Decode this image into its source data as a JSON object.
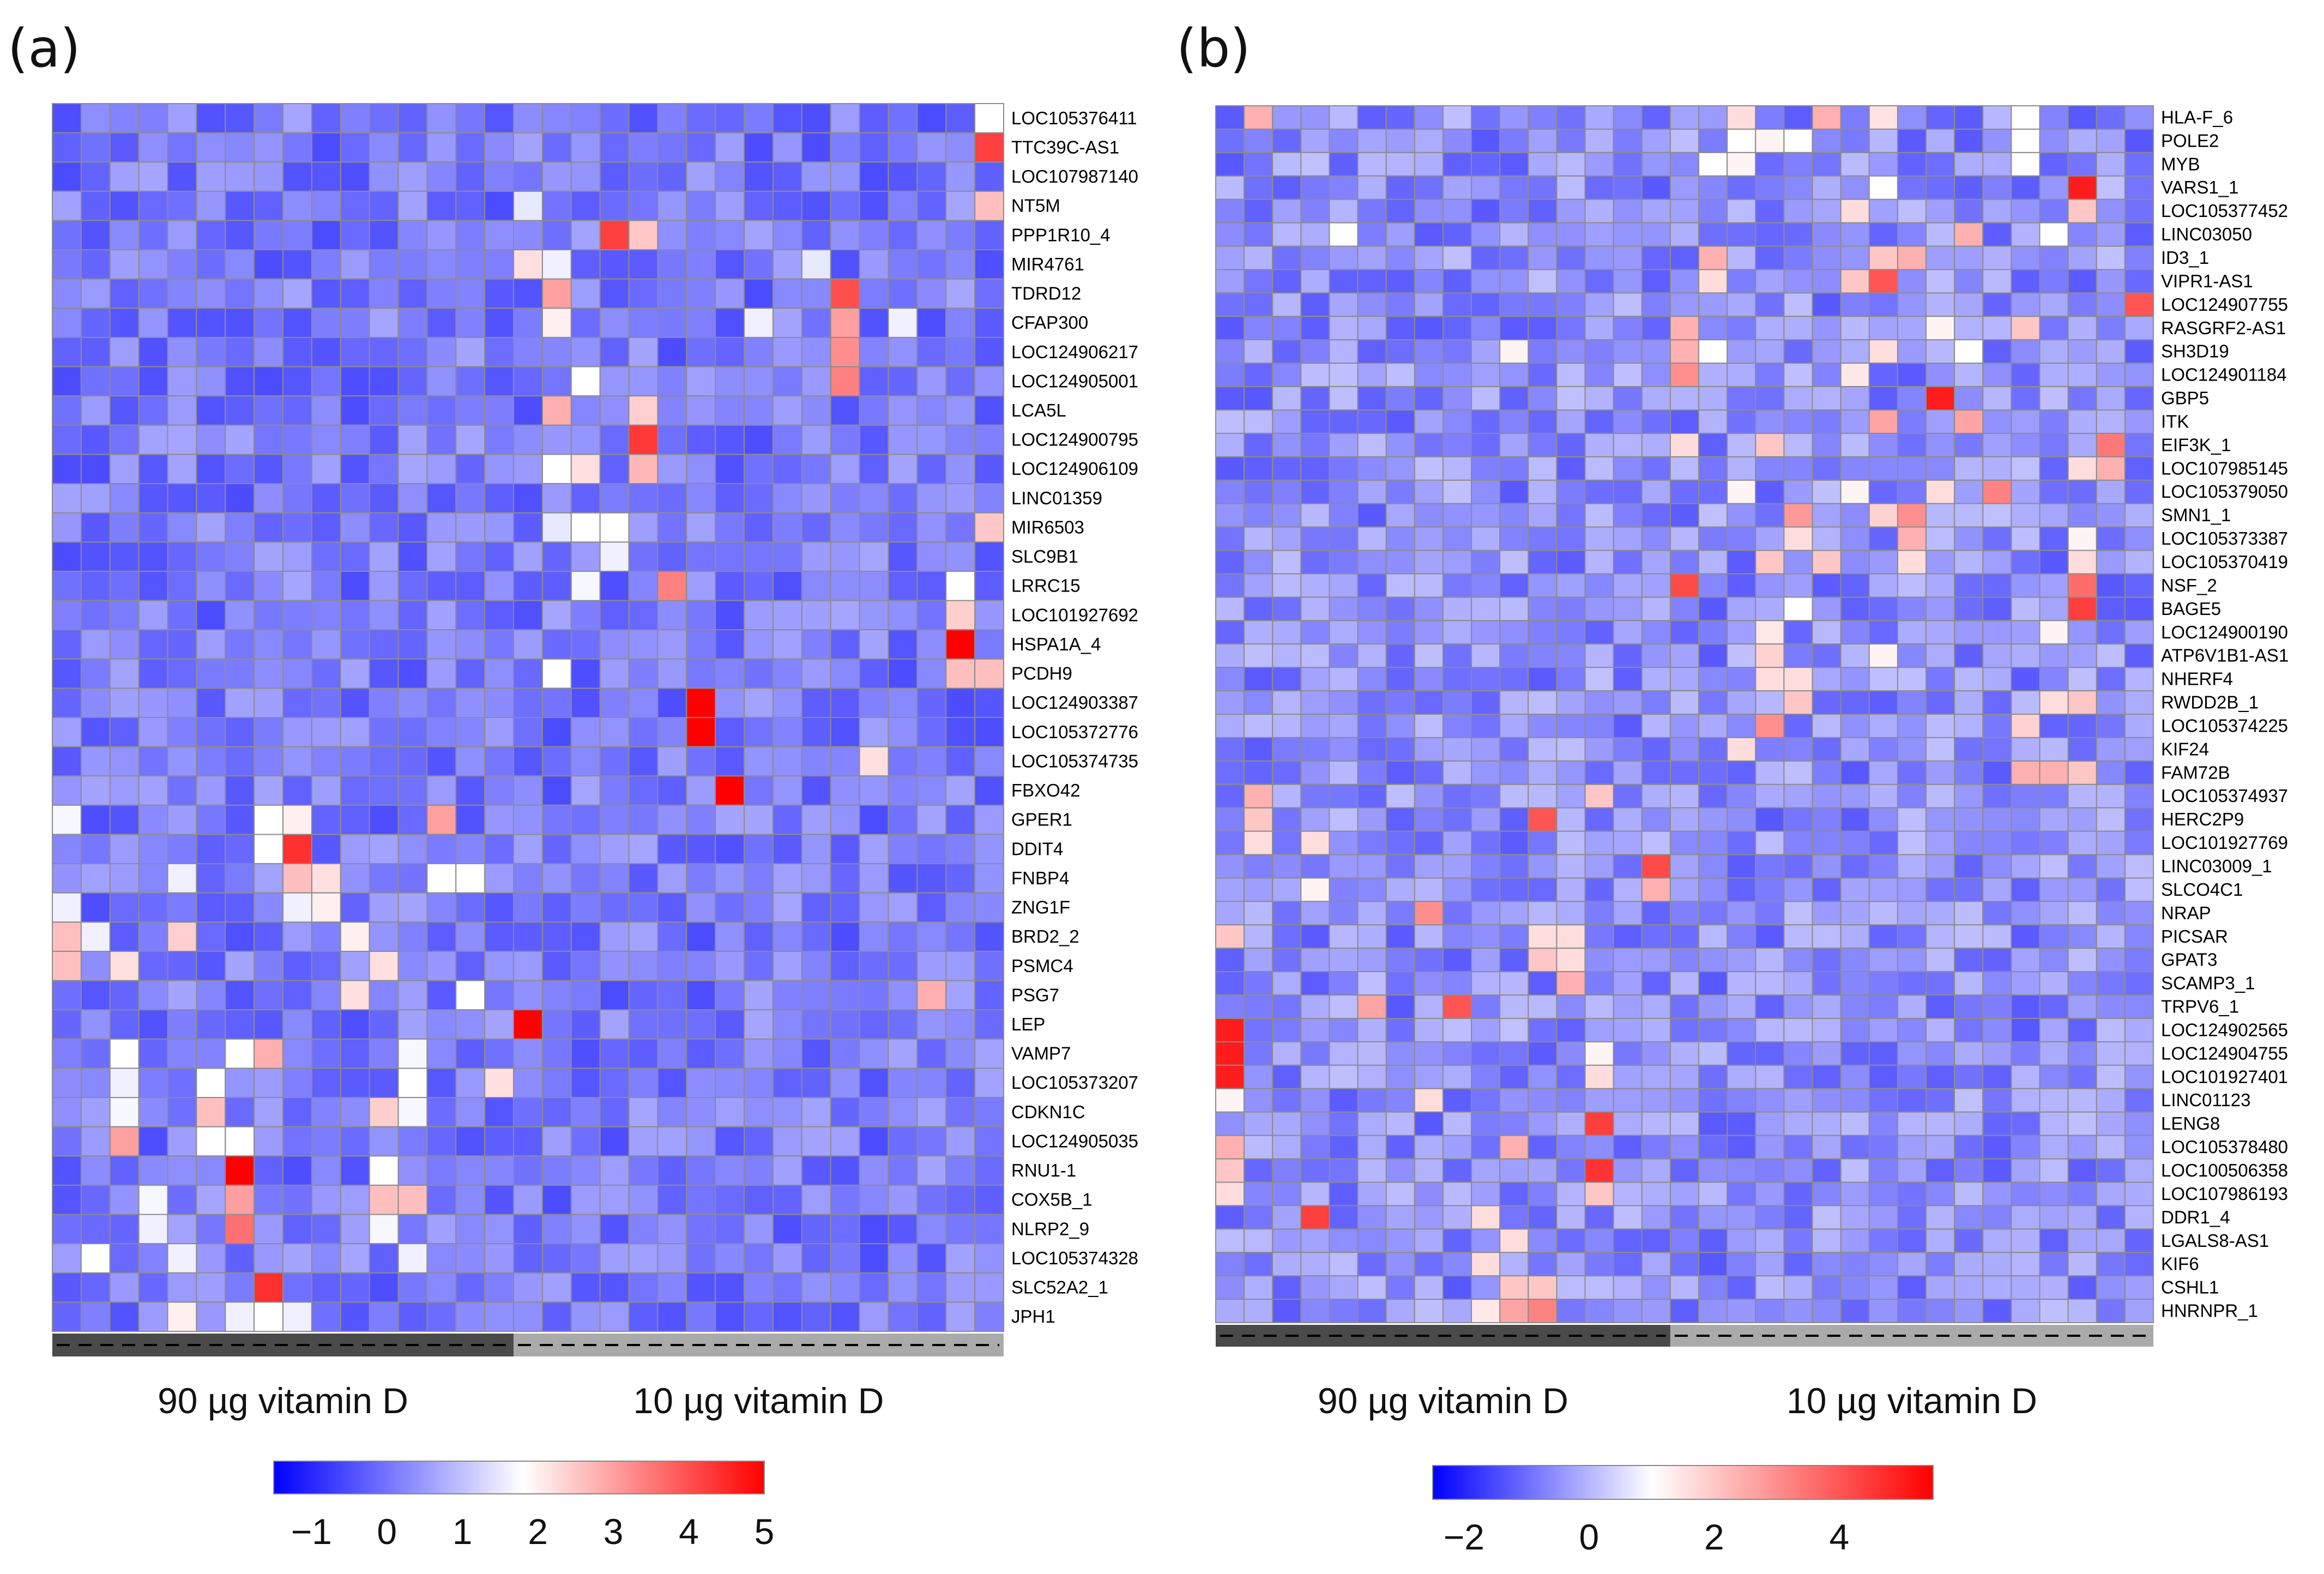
{
  "chart_data": [
    {
      "type": "heatmap",
      "panel": "(a)",
      "groups": [
        {
          "label": "90 µg vitamin D",
          "columns": 16,
          "color": "#4a4a4a"
        },
        {
          "label": "10 µg vitamin D",
          "columns": 17,
          "color": "#aaaaaa"
        }
      ],
      "rows": [
        "LOC105376411",
        "TTC39C-AS1",
        "LOC107987140",
        "NT5M",
        "PPP1R10_4",
        "MIR4761",
        "TDRD12",
        "CFAP300",
        "LOC124906217",
        "LOC124905001",
        "LCA5L",
        "LOC124900795",
        "LOC124906109",
        "LINC01359",
        "MIR6503",
        "SLC9B1",
        "LRRC15",
        "LOC101927692",
        "HSPA1A_4",
        "PCDH9",
        "LOC124903387",
        "LOC105372776",
        "LOC105374735",
        "FBXO42",
        "GPER1",
        "DDIT4",
        "FNBP4",
        "ZNG1F",
        "BRD2_2",
        "PSMC4",
        "PSG7",
        "LEP",
        "VAMP7",
        "LOC105373207",
        "CDKN1C",
        "LOC124905035",
        "RNU1-1",
        "COX5B_1",
        "NLRP2_9",
        "LOC105374328",
        "SLC52A2_1",
        "JPH1"
      ],
      "color_scale": {
        "min": -1.5,
        "max": 5,
        "low": "#0000ff",
        "mid": "#ffffff",
        "mid_value": 1.8,
        "high": "#ff0000",
        "ticks": [
          "−1",
          "0",
          "1",
          "2",
          "3",
          "4",
          "5"
        ],
        "tick_values": [
          -1,
          0,
          1,
          2,
          3,
          4,
          5
        ]
      },
      "highlights": [
        [
          0,
          32,
          1.8
        ],
        [
          1,
          32,
          4.2
        ],
        [
          3,
          16,
          1.5
        ],
        [
          3,
          32,
          2.6
        ],
        [
          4,
          19,
          4.2
        ],
        [
          4,
          20,
          2.5
        ],
        [
          5,
          16,
          2.2
        ],
        [
          5,
          17,
          1.6
        ],
        [
          5,
          26,
          1.5
        ],
        [
          6,
          17,
          3.0
        ],
        [
          6,
          27,
          4.0
        ],
        [
          7,
          17,
          2.0
        ],
        [
          7,
          24,
          1.6
        ],
        [
          7,
          27,
          3.0
        ],
        [
          7,
          29,
          1.6
        ],
        [
          8,
          27,
          3.2
        ],
        [
          9,
          18,
          1.8
        ],
        [
          9,
          27,
          3.4
        ],
        [
          10,
          17,
          2.8
        ],
        [
          10,
          20,
          2.4
        ],
        [
          11,
          20,
          4.3
        ],
        [
          12,
          17,
          1.8
        ],
        [
          12,
          18,
          2.2
        ],
        [
          12,
          20,
          2.7
        ],
        [
          14,
          17,
          1.5
        ],
        [
          14,
          18,
          1.8
        ],
        [
          14,
          19,
          1.8
        ],
        [
          14,
          32,
          2.5
        ],
        [
          15,
          19,
          1.6
        ],
        [
          16,
          18,
          1.7
        ],
        [
          16,
          21,
          3.4
        ],
        [
          16,
          31,
          1.8
        ],
        [
          17,
          31,
          2.4
        ],
        [
          18,
          31,
          5.0
        ],
        [
          19,
          17,
          1.8
        ],
        [
          19,
          31,
          2.6
        ],
        [
          19,
          32,
          2.6
        ],
        [
          20,
          22,
          5.0
        ],
        [
          21,
          22,
          5.0
        ],
        [
          22,
          28,
          2.2
        ],
        [
          23,
          23,
          5.0
        ],
        [
          24,
          0,
          1.7
        ],
        [
          24,
          7,
          1.8
        ],
        [
          24,
          8,
          2.0
        ],
        [
          24,
          13,
          3.0
        ],
        [
          25,
          7,
          1.8
        ],
        [
          25,
          8,
          4.4
        ],
        [
          26,
          4,
          1.6
        ],
        [
          26,
          8,
          2.6
        ],
        [
          26,
          9,
          2.2
        ],
        [
          26,
          13,
          1.8
        ],
        [
          26,
          14,
          1.8
        ],
        [
          27,
          0,
          1.6
        ],
        [
          27,
          8,
          1.6
        ],
        [
          27,
          9,
          2.0
        ],
        [
          28,
          0,
          2.6
        ],
        [
          28,
          1,
          1.6
        ],
        [
          28,
          4,
          2.4
        ],
        [
          28,
          10,
          2.0
        ],
        [
          29,
          0,
          2.6
        ],
        [
          29,
          2,
          2.2
        ],
        [
          29,
          11,
          2.2
        ],
        [
          30,
          10,
          2.2
        ],
        [
          30,
          14,
          1.8
        ],
        [
          30,
          30,
          2.8
        ],
        [
          31,
          16,
          5.0
        ],
        [
          32,
          2,
          1.8
        ],
        [
          32,
          6,
          1.8
        ],
        [
          32,
          7,
          2.8
        ],
        [
          32,
          12,
          1.7
        ],
        [
          33,
          2,
          1.6
        ],
        [
          33,
          5,
          1.8
        ],
        [
          33,
          12,
          1.8
        ],
        [
          33,
          15,
          2.2
        ],
        [
          34,
          2,
          1.7
        ],
        [
          34,
          5,
          2.6
        ],
        [
          34,
          11,
          2.4
        ],
        [
          34,
          12,
          1.7
        ],
        [
          35,
          2,
          3.0
        ],
        [
          35,
          5,
          1.8
        ],
        [
          35,
          6,
          1.8
        ],
        [
          36,
          6,
          5.0
        ],
        [
          36,
          11,
          1.8
        ],
        [
          37,
          3,
          1.7
        ],
        [
          37,
          6,
          3.0
        ],
        [
          37,
          11,
          2.6
        ],
        [
          37,
          12,
          2.6
        ],
        [
          38,
          3,
          1.6
        ],
        [
          38,
          6,
          3.6
        ],
        [
          38,
          11,
          1.7
        ],
        [
          39,
          1,
          1.8
        ],
        [
          39,
          4,
          1.6
        ],
        [
          39,
          12,
          1.6
        ],
        [
          40,
          7,
          4.4
        ],
        [
          41,
          4,
          2.0
        ],
        [
          41,
          6,
          1.6
        ],
        [
          41,
          7,
          1.8
        ],
        [
          41,
          8,
          1.6
        ]
      ]
    },
    {
      "type": "heatmap",
      "panel": "(b)",
      "groups": [
        {
          "label": "90 µg vitamin D",
          "columns": 16,
          "color": "#4a4a4a"
        },
        {
          "label": "10 µg vitamin D",
          "columns": 17,
          "color": "#aaaaaa"
        }
      ],
      "rows": [
        "HLA-F_6",
        "POLE2",
        "MYB",
        "VARS1_1",
        "LOC105377452",
        "LINC03050",
        "ID3_1",
        "VIPR1-AS1",
        "LOC124907755",
        "RASGRF2-AS1",
        "SH3D19",
        "LOC124901184",
        "GBP5",
        "ITK",
        "EIF3K_1",
        "LOC107985145",
        "LOC105379050",
        "SMN1_1",
        "LOC105373387",
        "LOC105370419",
        "NSF_2",
        "BAGE5",
        "LOC124900190",
        "ATP6V1B1-AS1",
        "NHERF4",
        "RWDD2B_1",
        "LOC105374225",
        "KIF24",
        "FAM72B",
        "LOC105374937",
        "HERC2P9",
        "LOC101927769",
        "LINC03009_1",
        "SLCO4C1",
        "NRAP",
        "PICSAR",
        "GPAT3",
        "SCAMP3_1",
        "TRPV6_1",
        "LOC124902565",
        "LOC124904755",
        "LOC101927401",
        "LINC01123",
        "LENG8",
        "LOC105378480",
        "LOC100506358",
        "LOC107986193",
        "DDR1_4",
        "LGALS8-AS1",
        "KIF6",
        "CSHL1",
        "HNRNPR_1"
      ],
      "color_scale": {
        "min": -2.5,
        "max": 5.5,
        "low": "#0000ff",
        "mid": "#ffffff",
        "mid_value": 1.0,
        "high": "#ff0000",
        "ticks": [
          "−2",
          "0",
          "2",
          "4"
        ],
        "tick_values": [
          -2,
          0,
          2,
          4
        ]
      },
      "highlights": [
        [
          0,
          1,
          2.4
        ],
        [
          0,
          18,
          1.6
        ],
        [
          0,
          21,
          2.4
        ],
        [
          0,
          23,
          1.5
        ],
        [
          0,
          28,
          1.0
        ],
        [
          1,
          18,
          1.0
        ],
        [
          1,
          19,
          1.2
        ],
        [
          1,
          20,
          1.0
        ],
        [
          1,
          28,
          1.0
        ],
        [
          2,
          17,
          1.0
        ],
        [
          2,
          18,
          1.2
        ],
        [
          2,
          28,
          1.0
        ],
        [
          3,
          23,
          1.0
        ],
        [
          3,
          30,
          5.0
        ],
        [
          4,
          22,
          1.6
        ],
        [
          4,
          30,
          2.0
        ],
        [
          5,
          4,
          1.0
        ],
        [
          5,
          26,
          2.4
        ],
        [
          5,
          29,
          1.0
        ],
        [
          6,
          17,
          2.4
        ],
        [
          6,
          23,
          2.0
        ],
        [
          6,
          24,
          2.4
        ],
        [
          7,
          17,
          1.6
        ],
        [
          7,
          22,
          2.0
        ],
        [
          7,
          23,
          4.0
        ],
        [
          8,
          32,
          4.0
        ],
        [
          9,
          16,
          2.4
        ],
        [
          9,
          25,
          1.2
        ],
        [
          9,
          28,
          2.0
        ],
        [
          10,
          10,
          1.2
        ],
        [
          10,
          16,
          2.4
        ],
        [
          10,
          17,
          1.0
        ],
        [
          10,
          23,
          1.6
        ],
        [
          10,
          26,
          1.0
        ],
        [
          11,
          16,
          3.0
        ],
        [
          11,
          22,
          1.4
        ],
        [
          12,
          25,
          5.0
        ],
        [
          13,
          23,
          2.6
        ],
        [
          13,
          26,
          2.6
        ],
        [
          14,
          16,
          1.6
        ],
        [
          14,
          19,
          2.0
        ],
        [
          14,
          31,
          3.4
        ],
        [
          15,
          30,
          1.6
        ],
        [
          15,
          31,
          2.4
        ],
        [
          16,
          18,
          1.2
        ],
        [
          16,
          22,
          1.2
        ],
        [
          16,
          25,
          1.6
        ],
        [
          16,
          27,
          3.2
        ],
        [
          17,
          20,
          2.8
        ],
        [
          17,
          23,
          1.8
        ],
        [
          17,
          24,
          3.0
        ],
        [
          18,
          20,
          1.6
        ],
        [
          18,
          24,
          2.4
        ],
        [
          18,
          30,
          1.2
        ],
        [
          19,
          19,
          2.0
        ],
        [
          19,
          21,
          2.0
        ],
        [
          19,
          24,
          1.6
        ],
        [
          19,
          30,
          1.6
        ],
        [
          20,
          16,
          4.2
        ],
        [
          20,
          30,
          3.6
        ],
        [
          21,
          20,
          1.0
        ],
        [
          21,
          30,
          4.4
        ],
        [
          22,
          19,
          1.4
        ],
        [
          22,
          29,
          1.2
        ],
        [
          23,
          19,
          1.8
        ],
        [
          23,
          23,
          1.2
        ],
        [
          24,
          19,
          1.6
        ],
        [
          24,
          20,
          1.6
        ],
        [
          25,
          20,
          2.0
        ],
        [
          25,
          29,
          1.6
        ],
        [
          25,
          30,
          2.0
        ],
        [
          26,
          19,
          3.0
        ],
        [
          26,
          28,
          1.8
        ],
        [
          27,
          18,
          1.6
        ],
        [
          28,
          28,
          2.4
        ],
        [
          28,
          29,
          2.4
        ],
        [
          28,
          30,
          2.0
        ],
        [
          29,
          1,
          2.4
        ],
        [
          29,
          13,
          2.0
        ],
        [
          30,
          1,
          2.0
        ],
        [
          30,
          11,
          4.0
        ],
        [
          31,
          1,
          1.6
        ],
        [
          31,
          3,
          1.6
        ],
        [
          32,
          15,
          4.2
        ],
        [
          33,
          15,
          2.4
        ],
        [
          33,
          3,
          1.2
        ],
        [
          34,
          7,
          3.0
        ],
        [
          35,
          0,
          2.0
        ],
        [
          35,
          11,
          1.6
        ],
        [
          35,
          12,
          1.6
        ],
        [
          36,
          11,
          2.0
        ],
        [
          36,
          12,
          1.6
        ],
        [
          37,
          12,
          2.4
        ],
        [
          38,
          5,
          2.6
        ],
        [
          38,
          8,
          4.0
        ],
        [
          39,
          0,
          5.0
        ],
        [
          40,
          0,
          5.0
        ],
        [
          40,
          13,
          1.2
        ],
        [
          41,
          0,
          5.0
        ],
        [
          41,
          13,
          1.6
        ],
        [
          42,
          0,
          1.2
        ],
        [
          42,
          7,
          1.6
        ],
        [
          43,
          13,
          4.4
        ],
        [
          44,
          0,
          2.4
        ],
        [
          44,
          10,
          2.4
        ],
        [
          45,
          0,
          2.0
        ],
        [
          45,
          13,
          4.6
        ],
        [
          46,
          0,
          1.6
        ],
        [
          46,
          13,
          2.0
        ],
        [
          47,
          3,
          4.4
        ],
        [
          47,
          9,
          1.6
        ],
        [
          48,
          10,
          1.6
        ],
        [
          49,
          9,
          1.6
        ],
        [
          50,
          10,
          2.0
        ],
        [
          50,
          11,
          2.0
        ],
        [
          51,
          9,
          1.4
        ],
        [
          51,
          10,
          2.6
        ],
        [
          51,
          11,
          3.2
        ]
      ]
    }
  ]
}
